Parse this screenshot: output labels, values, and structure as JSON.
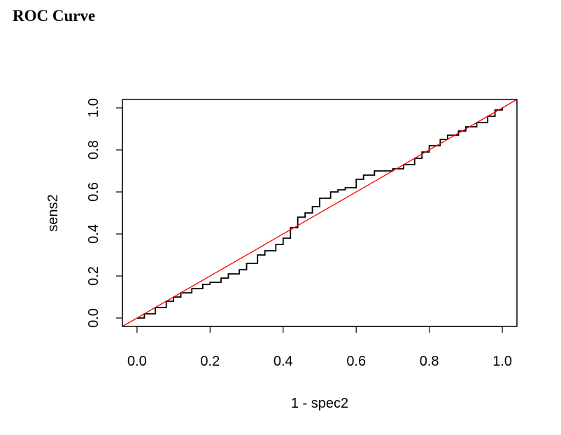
{
  "page": {
    "title": "ROC Curve"
  },
  "chart_data": {
    "type": "line",
    "title": "",
    "xlabel": "1 - spec2",
    "ylabel": "sens2",
    "xlim": [
      -0.04,
      1.04
    ],
    "ylim": [
      -0.04,
      1.04
    ],
    "grid": false,
    "legend": "none",
    "x_ticks": [
      "0.0",
      "0.2",
      "0.4",
      "0.6",
      "0.8",
      "1.0"
    ],
    "y_ticks": [
      "0.0",
      "0.2",
      "0.4",
      "0.6",
      "0.8",
      "1.0"
    ],
    "series": [
      {
        "color": "#000000",
        "style": "step",
        "x": [
          0.0,
          0.02,
          0.05,
          0.08,
          0.1,
          0.12,
          0.15,
          0.18,
          0.2,
          0.23,
          0.25,
          0.28,
          0.3,
          0.33,
          0.35,
          0.38,
          0.4,
          0.42,
          0.44,
          0.46,
          0.48,
          0.5,
          0.53,
          0.55,
          0.57,
          0.6,
          0.62,
          0.65,
          0.7,
          0.73,
          0.76,
          0.78,
          0.8,
          0.83,
          0.85,
          0.88,
          0.9,
          0.93,
          0.96,
          0.98,
          1.0
        ],
        "y": [
          0.0,
          0.02,
          0.05,
          0.08,
          0.1,
          0.12,
          0.14,
          0.16,
          0.17,
          0.19,
          0.21,
          0.23,
          0.26,
          0.3,
          0.32,
          0.35,
          0.38,
          0.43,
          0.48,
          0.5,
          0.53,
          0.57,
          0.6,
          0.61,
          0.62,
          0.66,
          0.68,
          0.7,
          0.71,
          0.73,
          0.76,
          0.79,
          0.82,
          0.85,
          0.87,
          0.89,
          0.91,
          0.93,
          0.96,
          0.99,
          1.0
        ]
      },
      {
        "color": "#ff0000",
        "style": "line",
        "x": [
          -0.04,
          1.04
        ],
        "y": [
          -0.04,
          1.04
        ]
      }
    ]
  }
}
